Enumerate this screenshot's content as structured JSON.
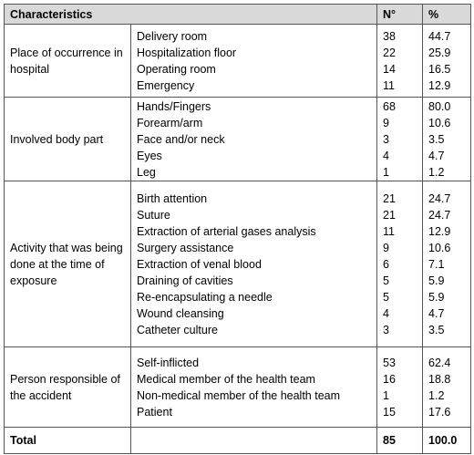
{
  "table": {
    "header": [
      "Characteristics",
      "N°",
      "%"
    ],
    "groups": [
      {
        "label": "Place of occurrence in  hospital",
        "items": [
          [
            "Delivery room",
            "38",
            "44.7"
          ],
          [
            "Hospitalization floor",
            "22",
            "25.9"
          ],
          [
            "Operating room",
            "14",
            "16.5"
          ],
          [
            "Emergency",
            "11",
            "12.9"
          ]
        ]
      },
      {
        "label": "Involved body part",
        "items": [
          [
            "Hands/Fingers",
            "68",
            "80.0"
          ],
          [
            "Forearm/arm",
            "9",
            "10.6"
          ],
          [
            "Face and/or neck",
            "3",
            "3.5"
          ],
          [
            "Eyes",
            "4",
            "4.7"
          ],
          [
            "Leg",
            "1",
            "1.2"
          ]
        ]
      },
      {
        "label": "Activity that was being done at the time of exposure",
        "items": [
          [
            "Birth attention",
            "21",
            "24.7"
          ],
          [
            "Suture",
            "21",
            "24.7"
          ],
          [
            "Extraction of arterial gases analysis",
            "11",
            "12.9"
          ],
          [
            "Surgery assistance",
            "9",
            "10.6"
          ],
          [
            "Extraction of venal blood",
            "6",
            "7.1"
          ],
          [
            "Draining of cavities",
            "5",
            "5.9"
          ],
          [
            "Re-encapsulating a needle",
            "5",
            "5.9"
          ],
          [
            "Wound cleansing",
            "4",
            "4.7"
          ],
          [
            "Catheter culture",
            "3",
            "3.5"
          ]
        ]
      },
      {
        "label": "Person responsible of the accident",
        "items": [
          [
            "Self-inflicted",
            "53",
            "62.4"
          ],
          [
            "Medical member of the health team",
            "16",
            "18.8"
          ],
          [
            "Non-medical member of the health team",
            "1",
            "1.2"
          ],
          [
            "Patient",
            "15",
            "17.6"
          ]
        ]
      }
    ],
    "total": [
      "Total",
      "85",
      "100.0"
    ]
  }
}
